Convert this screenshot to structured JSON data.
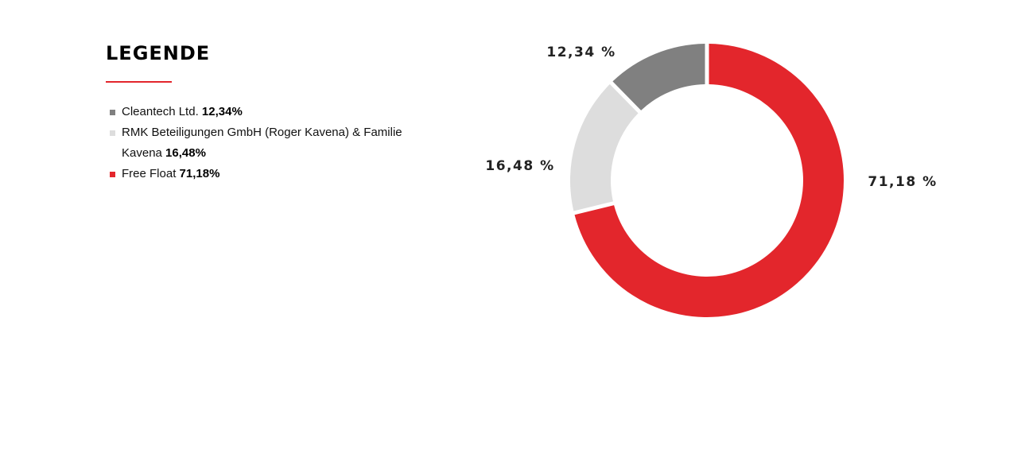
{
  "legend": {
    "title": "LEGENDE",
    "accent_color": "#e3262c",
    "items": [
      {
        "label_main": "Cleantech Ltd.",
        "value": "12,34%",
        "color": "#808080"
      },
      {
        "label_main": "RMK Beteiligungen GmbH (Roger Kavena) & Familie Kavena",
        "value": "16,48%",
        "color": "#dddddd"
      },
      {
        "label_main": "Free Float",
        "value": "71,18%",
        "color": "#e3262c"
      }
    ]
  },
  "chart_data": {
    "type": "pie",
    "variant": "donut",
    "title": "",
    "series": [
      {
        "values": [
          {
            "category": "Cleantech Ltd.",
            "value": 12.34,
            "label": "12,34 %",
            "color": "#808080"
          },
          {
            "category": "RMK Beteiligungen GmbH (Roger Kavena) & Familie Kavena",
            "value": 16.48,
            "label": "16,48 %",
            "color": "#dddddd"
          },
          {
            "category": "Free Float",
            "value": 71.18,
            "label": "71,18 %",
            "color": "#e3262c"
          }
        ]
      }
    ],
    "legend_position": "left"
  }
}
